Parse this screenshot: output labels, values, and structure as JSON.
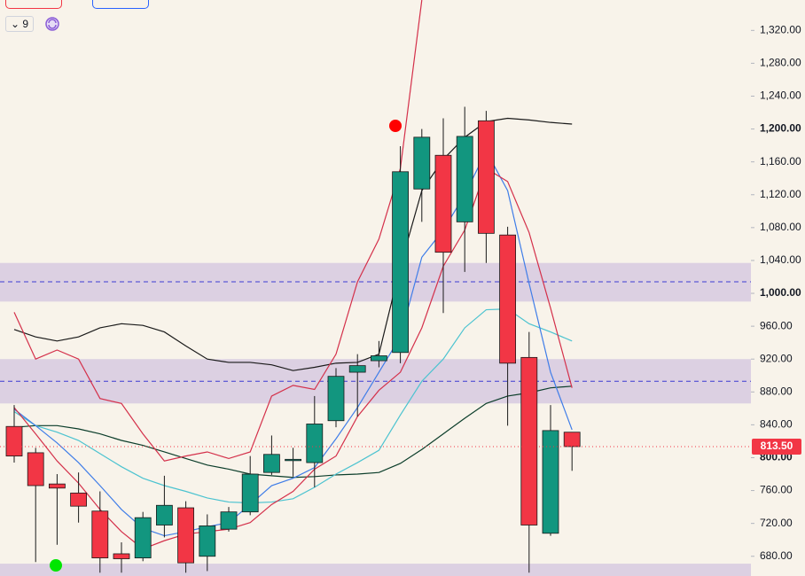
{
  "chart_data": {
    "type": "candlestick",
    "open": [
      838,
      806,
      768,
      757,
      735,
      683,
      678,
      718,
      739,
      680,
      713,
      734,
      782,
      797,
      794,
      845,
      904,
      918,
      928,
      1127,
      1168,
      1087,
      1210,
      1071,
      922,
      708,
      831
    ],
    "high": [
      864,
      812,
      780,
      782,
      759,
      697,
      734,
      778,
      747,
      731,
      740,
      802,
      827,
      812,
      875,
      909,
      926,
      942,
      1179,
      1200,
      1213,
      1227,
      1222,
      1081,
      953,
      864,
      831
    ],
    "low": [
      794,
      673,
      694,
      721,
      660,
      660,
      674,
      703,
      660,
      662,
      710,
      730,
      779,
      777,
      764,
      837,
      850,
      910,
      915,
      1087,
      976,
      1026,
      1037,
      839,
      660,
      705,
      784
    ],
    "close": [
      802,
      766,
      763,
      741,
      678,
      677,
      727,
      742,
      672,
      717,
      734,
      780,
      804,
      798,
      841,
      899,
      912,
      924,
      1148,
      1190,
      1050,
      1191,
      1073,
      915,
      718,
      833,
      813.5
    ],
    "up_color": "#12967f",
    "down_color": "#f23645",
    "lines": [
      {
        "color": "#0b3d2a",
        "values": [
          837,
          839,
          839,
          835,
          829,
          821,
          815,
          807,
          799,
          791,
          786,
          780,
          778,
          776,
          777,
          779,
          780,
          782,
          793,
          810,
          829,
          848,
          866,
          875,
          879,
          885,
          887
        ]
      },
      {
        "color": "#4cc3d0",
        "values": [
          856,
          839,
          831,
          821,
          805,
          789,
          775,
          766,
          759,
          751,
          746,
          745,
          746,
          750,
          764,
          780,
          794,
          809,
          852,
          893,
          920,
          958,
          980,
          981,
          963,
          953,
          942
        ]
      },
      {
        "color": "#3f7de8",
        "values": [
          859,
          839,
          818,
          794,
          766,
          737,
          714,
          705,
          710,
          716,
          721,
          743,
          766,
          775,
          788,
          823,
          861,
          904,
          947,
          1044,
          1077,
          1120,
          1173,
          1125,
          1012,
          904,
          834
        ]
      },
      {
        "color": "#1a1a1a",
        "values": [
          956,
          947,
          942,
          947,
          958,
          963,
          961,
          953,
          936,
          920,
          916,
          916,
          913,
          906,
          910,
          915,
          916,
          926,
          1033,
          1125,
          1163,
          1190,
          1209,
          1213,
          1211,
          1208,
          1206
        ]
      },
      {
        "color": "#d4304a",
        "values": [
          977,
          920,
          931,
          920,
          872,
          866,
          829,
          796,
          802,
          807,
          799,
          807,
          875,
          888,
          883,
          926,
          1014,
          1066,
          1152,
          1357,
          null,
          null,
          null,
          null,
          null,
          null,
          null
        ]
      },
      {
        "color": "#d4304a",
        "values": [
          861,
          829,
          796,
          769,
          737,
          710,
          689,
          699,
          707,
          710,
          713,
          721,
          743,
          759,
          786,
          802,
          850,
          882,
          904,
          958,
          1033,
          1077,
          1152,
          1136,
          1074,
          982,
          885
        ]
      }
    ],
    "zones": [
      {
        "from": 990,
        "to": 1037,
        "mid": 1014
      },
      {
        "from": 866,
        "to": 920,
        "mid": 893
      },
      {
        "from": 656,
        "to": 671
      }
    ],
    "zone_color": "rgba(149,117,205,0.28)",
    "zone_line_color": "#3b3bd1",
    "last_price": {
      "value": 813.5,
      "label": "813.50"
    },
    "interval": "9",
    "ylim": [
      656,
      1357
    ],
    "yticks": [
      {
        "value": 680,
        "label": "680.00"
      },
      {
        "value": 720,
        "label": "720.00"
      },
      {
        "value": 760,
        "label": "760.00"
      },
      {
        "value": 800,
        "label": "800.00"
      },
      {
        "value": 840,
        "label": "840.00"
      },
      {
        "value": 880,
        "label": "880.00"
      },
      {
        "value": 920,
        "label": "920.00"
      },
      {
        "value": 960,
        "label": "960.00"
      },
      {
        "value": 1000,
        "label": "1,000.00"
      },
      {
        "value": 1040,
        "label": "1,040.00"
      },
      {
        "value": 1080,
        "label": "1,080.00"
      },
      {
        "value": 1120,
        "label": "1,120.00"
      },
      {
        "value": 1160,
        "label": "1,160.00"
      },
      {
        "value": 1200,
        "label": "1,200.00"
      },
      {
        "value": 1240,
        "label": "1,240.00"
      },
      {
        "value": 1280,
        "label": "1,280.00"
      },
      {
        "value": 1320,
        "label": "1,320.00"
      }
    ]
  }
}
